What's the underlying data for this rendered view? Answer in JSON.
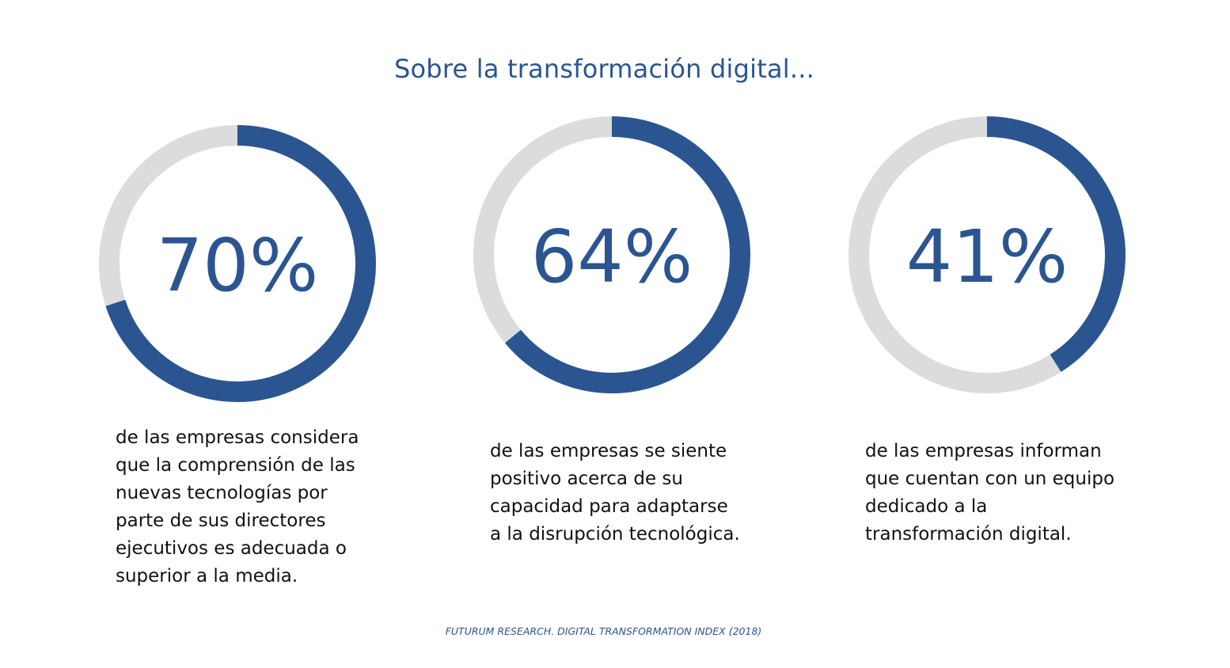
{
  "title": "Sobre la transformación digital...",
  "source": "FUTURUM RESEARCH. DIGITAL TRANSFORMATION INDEX (2018)",
  "colors": {
    "accent": "#2a5591",
    "track": "#dcdcdc",
    "text": "#111111"
  },
  "chart_data": [
    {
      "type": "pie",
      "value_percent": 70,
      "label": "70%",
      "description": [
        "de las empresas considera",
        "que la comprensión de las",
        "nuevas tecnologías por",
        "parte de sus directores",
        "ejecutivos es adecuada o",
        "superior a la media."
      ]
    },
    {
      "type": "pie",
      "value_percent": 64,
      "label": "64%",
      "description": [
        "de las empresas se siente",
        "positivo acerca de su",
        "capacidad para adaptarse",
        "a la disrupción tecnológica."
      ]
    },
    {
      "type": "pie",
      "value_percent": 41,
      "label": "41%",
      "description": [
        "de las empresas informan",
        "que cuentan con un equipo",
        "dedicado a la",
        "transformación digital."
      ]
    }
  ]
}
